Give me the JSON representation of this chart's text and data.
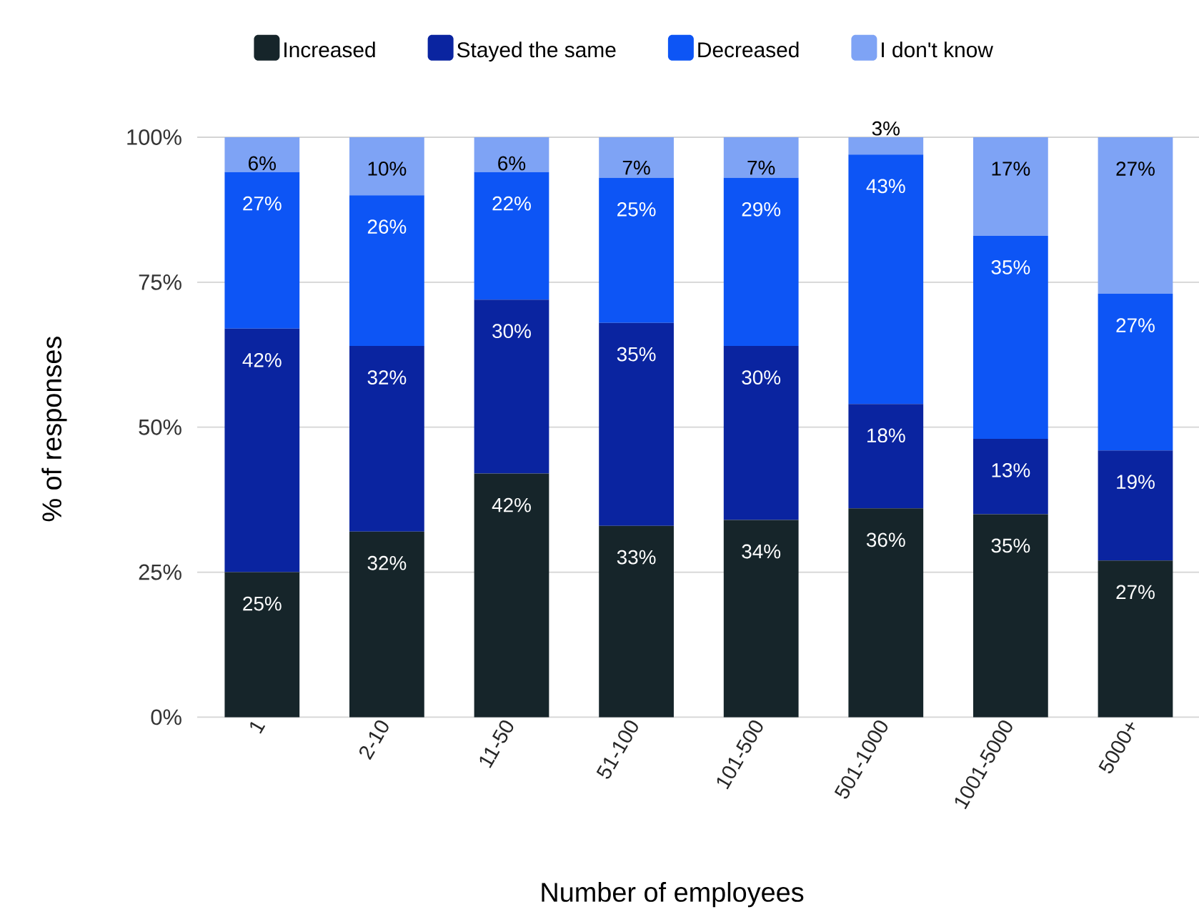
{
  "chart_data": {
    "type": "bar",
    "stacked": true,
    "xlabel": "Number of employees",
    "ylabel": "% of responses",
    "categories": [
      "1",
      "2-10",
      "11-50",
      "51-100",
      "101-500",
      "501-1000",
      "1001-5000",
      "5000+"
    ],
    "series": [
      {
        "name": "Increased",
        "color": "#16252a",
        "values": [
          25,
          32,
          42,
          33,
          34,
          36,
          35,
          27
        ],
        "value_labels": [
          "25%",
          "32%",
          "42%",
          "33%",
          "34%",
          "36%",
          "35%",
          "27%"
        ]
      },
      {
        "name": "Stayed the same",
        "color": "#0a24a0",
        "values": [
          42,
          32,
          30,
          35,
          30,
          18,
          13,
          19
        ],
        "value_labels": [
          "42%",
          "32%",
          "30%",
          "35%",
          "30%",
          "18%",
          "13%",
          "19%"
        ]
      },
      {
        "name": "Decreased",
        "color": "#0d55f5",
        "values": [
          27,
          26,
          22,
          25,
          29,
          43,
          35,
          27
        ],
        "value_labels": [
          "27%",
          "26%",
          "22%",
          "25%",
          "29%",
          "43%",
          "35%",
          "27%"
        ]
      },
      {
        "name": "I don't know",
        "color": "#7ea3f5",
        "values": [
          6,
          10,
          6,
          7,
          7,
          3,
          17,
          27
        ],
        "value_labels": [
          "6%",
          "10%",
          "6%",
          "7%",
          "7%",
          "3%",
          "17%",
          "27%"
        ]
      }
    ],
    "ylim": [
      0,
      100
    ],
    "yticks": [
      {
        "value": 0,
        "label": "0%"
      },
      {
        "value": 25,
        "label": "25%"
      },
      {
        "value": 50,
        "label": "50%"
      },
      {
        "value": 75,
        "label": "75%"
      },
      {
        "value": 100,
        "label": "100%"
      }
    ],
    "grid": "y",
    "legend": "top"
  }
}
